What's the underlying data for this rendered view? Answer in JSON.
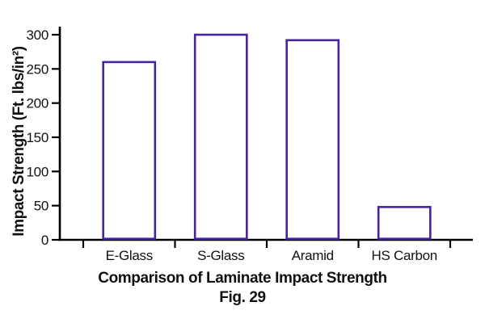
{
  "figure": {
    "fig_label": "Fig. 29"
  },
  "chart_data": {
    "type": "bar",
    "categories": [
      "E-Glass",
      "S-Glass",
      "Aramid",
      "HS Carbon"
    ],
    "values": [
      260,
      300,
      292,
      48
    ],
    "title": "Comparison of Laminate Impact Strength",
    "xlabel": "",
    "ylabel": "Impact Strength (Ft. lbs/in²)",
    "ylim": [
      0,
      300
    ],
    "yticks": [
      0,
      50,
      100,
      150,
      200,
      250,
      300
    ],
    "grid": false,
    "legend": false,
    "colors": {
      "bar_fill": "#ffffff",
      "bar_border": "#4823a0",
      "axis": "#000000",
      "text": "#111111",
      "background": "#ffffff"
    }
  }
}
